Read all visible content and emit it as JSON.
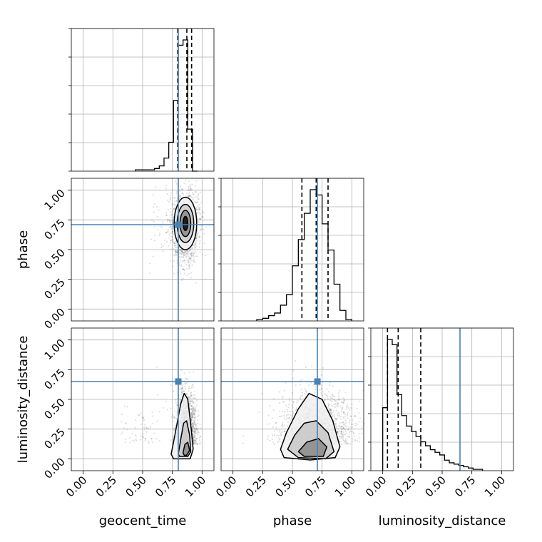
{
  "chart_data": {
    "type": "corner",
    "parameters": [
      "geocent_time",
      "phase",
      "luminosity_distance"
    ],
    "range": [
      -0.1,
      1.1
    ],
    "ticks": [
      0.0,
      0.25,
      0.5,
      0.75,
      1.0
    ],
    "tick_labels": [
      "0.00",
      "0.25",
      "0.50",
      "0.75",
      "1.00"
    ],
    "grid": true,
    "truths": {
      "geocent_time": 0.8,
      "phase": 0.71,
      "luminosity_distance": 0.65
    },
    "colors": {
      "truth": "#4682b4",
      "hist": "#000000",
      "grid": "#b0b0b0"
    },
    "histograms": {
      "geocent_time": {
        "bin_edges": [
          0.44,
          0.48,
          0.52,
          0.56,
          0.6,
          0.64,
          0.68,
          0.72,
          0.76,
          0.8,
          0.84,
          0.88,
          0.92,
          0.96
        ],
        "counts": [
          0.01,
          0.01,
          0.01,
          0.01,
          0.02,
          0.04,
          0.1,
          0.22,
          0.54,
          0.96,
          1.0,
          0.32,
          0.0
        ],
        "quantiles": [
          0.795,
          0.872,
          0.912
        ]
      },
      "phase": {
        "bin_edges": [
          0.2,
          0.25,
          0.3,
          0.35,
          0.4,
          0.45,
          0.5,
          0.55,
          0.6,
          0.65,
          0.7,
          0.75,
          0.8,
          0.85,
          0.9,
          0.95,
          1.0
        ],
        "counts": [
          0.01,
          0.02,
          0.04,
          0.06,
          0.12,
          0.2,
          0.42,
          0.62,
          0.82,
          1.0,
          0.96,
          0.74,
          0.54,
          0.28,
          0.08,
          0.01
        ],
        "quantiles": [
          0.58,
          0.7,
          0.8
        ]
      },
      "luminosity_distance": {
        "bin_edges": [
          0.0,
          0.04,
          0.08,
          0.12,
          0.16,
          0.2,
          0.24,
          0.28,
          0.32,
          0.36,
          0.4,
          0.44,
          0.48,
          0.52,
          0.56,
          0.6,
          0.64,
          0.68,
          0.72,
          0.76,
          0.8,
          0.84
        ],
        "counts": [
          0.48,
          1.0,
          0.96,
          0.58,
          0.42,
          0.34,
          0.3,
          0.26,
          0.22,
          0.19,
          0.16,
          0.14,
          0.12,
          0.08,
          0.06,
          0.05,
          0.04,
          0.03,
          0.02,
          0.01,
          0.01
        ],
        "quantiles": [
          0.04,
          0.13,
          0.32
        ]
      }
    },
    "contours": {
      "geocent_time__phase": {
        "center": [
          0.86,
          0.72
        ],
        "levels": [
          [
            0.095,
            0.22
          ],
          [
            0.07,
            0.16
          ],
          [
            0.045,
            0.11
          ],
          [
            0.02,
            0.06
          ]
        ]
      },
      "geocent_time__luminosity_distance": {
        "levels": [
          [
            [
              0.74,
              0.04
            ],
            [
              0.76,
              0.14
            ],
            [
              0.79,
              0.3
            ],
            [
              0.82,
              0.46
            ],
            [
              0.85,
              0.55
            ],
            [
              0.88,
              0.5
            ],
            [
              0.91,
              0.24
            ],
            [
              0.925,
              0.08
            ],
            [
              0.9,
              0.0
            ],
            [
              0.76,
              0.0
            ]
          ],
          [
            [
              0.8,
              0.04
            ],
            [
              0.82,
              0.16
            ],
            [
              0.845,
              0.3
            ],
            [
              0.87,
              0.32
            ],
            [
              0.895,
              0.2
            ],
            [
              0.905,
              0.06
            ],
            [
              0.88,
              0.02
            ],
            [
              0.81,
              0.02
            ]
          ],
          [
            [
              0.84,
              0.05
            ],
            [
              0.855,
              0.12
            ],
            [
              0.88,
              0.14
            ],
            [
              0.895,
              0.07
            ],
            [
              0.87,
              0.03
            ],
            [
              0.85,
              0.03
            ]
          ]
        ]
      },
      "phase__luminosity_distance": {
        "levels": [
          [
            [
              0.4,
              0.08
            ],
            [
              0.45,
              0.22
            ],
            [
              0.55,
              0.42
            ],
            [
              0.64,
              0.55
            ],
            [
              0.75,
              0.5
            ],
            [
              0.84,
              0.32
            ],
            [
              0.9,
              0.1
            ],
            [
              0.86,
              0.01
            ],
            [
              0.65,
              -0.01
            ],
            [
              0.43,
              0.01
            ]
          ],
          [
            [
              0.46,
              0.08
            ],
            [
              0.52,
              0.2
            ],
            [
              0.6,
              0.3
            ],
            [
              0.7,
              0.32
            ],
            [
              0.8,
              0.22
            ],
            [
              0.85,
              0.06
            ],
            [
              0.78,
              0.0
            ],
            [
              0.55,
              0.01
            ]
          ],
          [
            [
              0.55,
              0.06
            ],
            [
              0.62,
              0.14
            ],
            [
              0.72,
              0.17
            ],
            [
              0.79,
              0.1
            ],
            [
              0.76,
              0.02
            ],
            [
              0.6,
              0.02
            ]
          ]
        ]
      }
    },
    "samples": {
      "geocent_time__phase": {
        "center": [
          0.86,
          0.7
        ],
        "spread": [
          0.06,
          0.15
        ],
        "tail_x": 0.55,
        "n": 1400
      },
      "geocent_time__luminosity_distance": {
        "center": [
          0.87,
          0.12
        ],
        "spread": [
          0.04,
          0.2
        ],
        "tail_x": 0.3,
        "n": 1400
      },
      "phase__luminosity_distance": {
        "center": [
          0.7,
          0.12
        ],
        "spread": [
          0.15,
          0.2
        ],
        "n": 1400
      }
    }
  }
}
